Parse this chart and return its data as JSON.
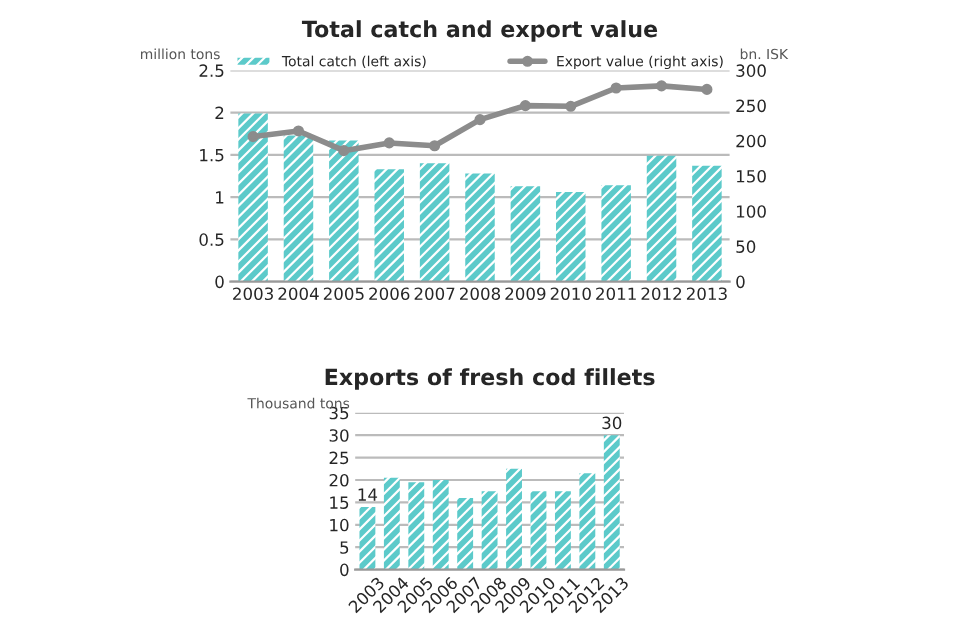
{
  "chart_data": [
    {
      "type": "bar",
      "title": "Total catch and export value",
      "ylabel": "million tons",
      "y2label": "bn. ISK",
      "categories": [
        "2003",
        "2004",
        "2005",
        "2006",
        "2007",
        "2008",
        "2009",
        "2010",
        "2011",
        "2012",
        "2013"
      ],
      "series": [
        {
          "name": "Total catch (left axis)",
          "type": "bar",
          "color": "#5ccaca",
          "values": [
            1.99,
            1.73,
            1.67,
            1.33,
            1.4,
            1.28,
            1.13,
            1.06,
            1.14,
            1.49,
            1.37
          ]
        },
        {
          "name": "Export value (right axis)",
          "type": "line",
          "axis": "y2",
          "color": "#8c8c8c",
          "marker": "circle",
          "values": [
            206,
            214,
            186,
            197,
            193,
            230,
            250,
            249,
            275,
            278,
            273
          ]
        }
      ],
      "ylim": [
        0,
        2.5
      ],
      "yticks": [
        0,
        0.5,
        1,
        1.5,
        2,
        2.5
      ],
      "y2lim": [
        0,
        300
      ],
      "y2ticks": [
        0,
        50,
        100,
        150,
        200,
        250,
        300
      ],
      "grid": "y",
      "legend": "top"
    },
    {
      "type": "bar",
      "title": "Exports of fresh cod fillets",
      "ylabel": "Thousand tons",
      "categories": [
        "2003",
        "2004",
        "2005",
        "2006",
        "2007",
        "2008",
        "2009",
        "2010",
        "2011",
        "2012",
        "2013"
      ],
      "values": [
        14,
        20.5,
        19.5,
        20,
        16,
        17.5,
        22.5,
        17.5,
        17.5,
        21.5,
        30
      ],
      "color": "#5ccaca",
      "value_labels": [
        "14",
        null,
        null,
        null,
        null,
        null,
        null,
        null,
        null,
        null,
        "30"
      ],
      "ylim": [
        0,
        35
      ],
      "yticks": [
        0,
        5,
        10,
        15,
        20,
        25,
        30,
        35
      ],
      "grid": "y"
    }
  ]
}
